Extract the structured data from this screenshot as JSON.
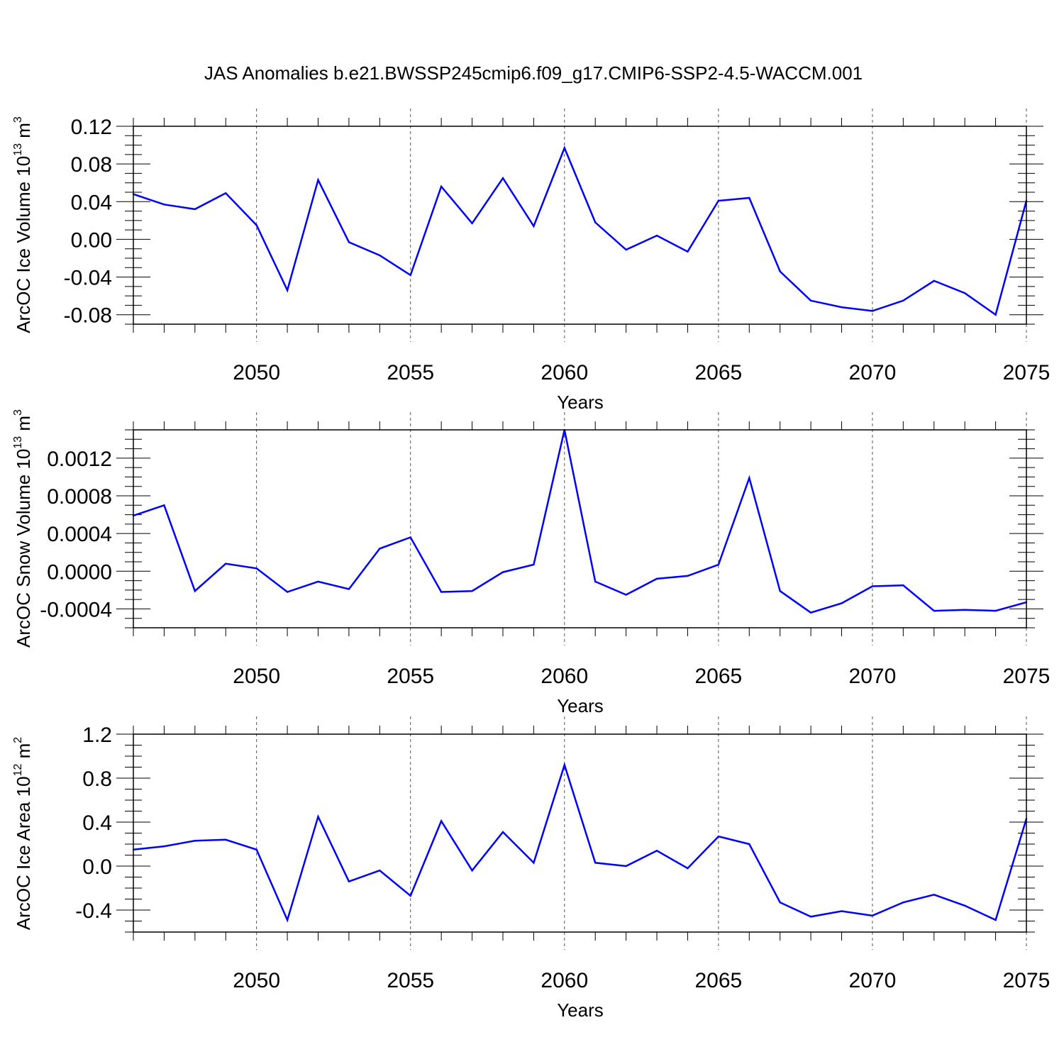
{
  "title": "JAS Anomalies b.e21.BWSSP245cmip6.f09_g17.CMIP6-SSP2-4.5-WACCM.001",
  "colors": {
    "series": "#0000ff",
    "axis": "#000000",
    "grid": "#555555",
    "background": "#ffffff"
  },
  "chart_data": [
    {
      "type": "line",
      "title": "JAS Anomalies b.e21.BWSSP245cmip6.f09_g17.CMIP6-SSP2-4.5-WACCM.001",
      "xlabel": "Years",
      "ylabel": {
        "text": "ArcOC Ice Volume 10",
        "sup": "13",
        "unit": "m",
        "unit_sup": "3"
      },
      "xlim": [
        2046,
        2075
      ],
      "ylim": [
        -0.09,
        0.12
      ],
      "xticks": [
        2050,
        2055,
        2060,
        2065,
        2070,
        2075
      ],
      "xtick_labels": [
        "2050",
        "2055",
        "2060",
        "2065",
        "2070",
        "2075"
      ],
      "yticks": [
        0.12,
        0.08,
        0.04,
        0.0,
        -0.04,
        -0.08
      ],
      "ytick_labels": [
        "0.12",
        "0.08",
        "0.04",
        "0.00",
        "-0.04",
        "-0.08"
      ],
      "x": [
        2046,
        2047,
        2048,
        2049,
        2050,
        2051,
        2052,
        2053,
        2054,
        2055,
        2056,
        2057,
        2058,
        2059,
        2060,
        2061,
        2062,
        2063,
        2064,
        2065,
        2066,
        2067,
        2068,
        2069,
        2070,
        2071,
        2072,
        2073,
        2074,
        2075
      ],
      "values": [
        0.048,
        0.037,
        0.032,
        0.049,
        0.015,
        -0.054,
        0.063,
        -0.003,
        -0.017,
        -0.038,
        0.056,
        0.017,
        0.065,
        0.014,
        0.097,
        0.018,
        -0.011,
        0.004,
        -0.013,
        0.041,
        0.044,
        -0.034,
        -0.065,
        -0.072,
        -0.076,
        -0.065,
        -0.044,
        -0.057,
        -0.08,
        0.041
      ]
    },
    {
      "type": "line",
      "xlabel": "Years",
      "ylabel": {
        "text": "ArcOC Snow Volume 10",
        "sup": "13",
        "unit": "m",
        "unit_sup": "3"
      },
      "xlim": [
        2046,
        2075
      ],
      "ylim": [
        -0.0006,
        0.0015
      ],
      "xticks": [
        2050,
        2055,
        2060,
        2065,
        2070,
        2075
      ],
      "xtick_labels": [
        "2050",
        "2055",
        "2060",
        "2065",
        "2070",
        "2075"
      ],
      "yticks": [
        0.0012,
        0.0008,
        0.0004,
        0.0,
        -0.0004
      ],
      "ytick_labels": [
        "0.0012",
        "0.0008",
        "0.0004",
        "0.0000",
        "-0.0004"
      ],
      "x": [
        2046,
        2047,
        2048,
        2049,
        2050,
        2051,
        2052,
        2053,
        2054,
        2055,
        2056,
        2057,
        2058,
        2059,
        2060,
        2061,
        2062,
        2063,
        2064,
        2065,
        2066,
        2067,
        2068,
        2069,
        2070,
        2071,
        2072,
        2073,
        2074,
        2075
      ],
      "values": [
        0.00059,
        0.0007,
        -0.00021,
        8e-05,
        3e-05,
        -0.00022,
        -0.00011,
        -0.00019,
        0.00024,
        0.00036,
        -0.00022,
        -0.00021,
        -1e-05,
        7e-05,
        0.0015,
        -0.00011,
        -0.00025,
        -8e-05,
        -5e-05,
        7e-05,
        0.00099,
        -0.00021,
        -0.00044,
        -0.00034,
        -0.00016,
        -0.00015,
        -0.00042,
        -0.00041,
        -0.00042,
        -0.00033
      ]
    },
    {
      "type": "line",
      "xlabel": "Years",
      "ylabel": {
        "text": "ArcOC Ice Area 10",
        "sup": "12",
        "unit": "m",
        "unit_sup": "2"
      },
      "xlim": [
        2046,
        2075
      ],
      "ylim": [
        -0.6,
        1.2
      ],
      "xticks": [
        2050,
        2055,
        2060,
        2065,
        2070,
        2075
      ],
      "xtick_labels": [
        "2050",
        "2055",
        "2060",
        "2065",
        "2070",
        "2075"
      ],
      "yticks": [
        1.2,
        0.8,
        0.4,
        0.0,
        -0.4
      ],
      "ytick_labels": [
        "1.2",
        "0.8",
        "0.4",
        "0.0",
        "-0.4"
      ],
      "x": [
        2046,
        2047,
        2048,
        2049,
        2050,
        2051,
        2052,
        2053,
        2054,
        2055,
        2056,
        2057,
        2058,
        2059,
        2060,
        2061,
        2062,
        2063,
        2064,
        2065,
        2066,
        2067,
        2068,
        2069,
        2070,
        2071,
        2072,
        2073,
        2074,
        2075
      ],
      "values": [
        0.15,
        0.18,
        0.23,
        0.24,
        0.15,
        -0.49,
        0.45,
        -0.14,
        -0.04,
        -0.27,
        0.41,
        -0.04,
        0.31,
        0.03,
        0.92,
        0.03,
        0.0,
        0.14,
        -0.02,
        0.27,
        0.2,
        -0.33,
        -0.46,
        -0.41,
        -0.45,
        -0.33,
        -0.26,
        -0.36,
        -0.49,
        0.43
      ]
    }
  ]
}
